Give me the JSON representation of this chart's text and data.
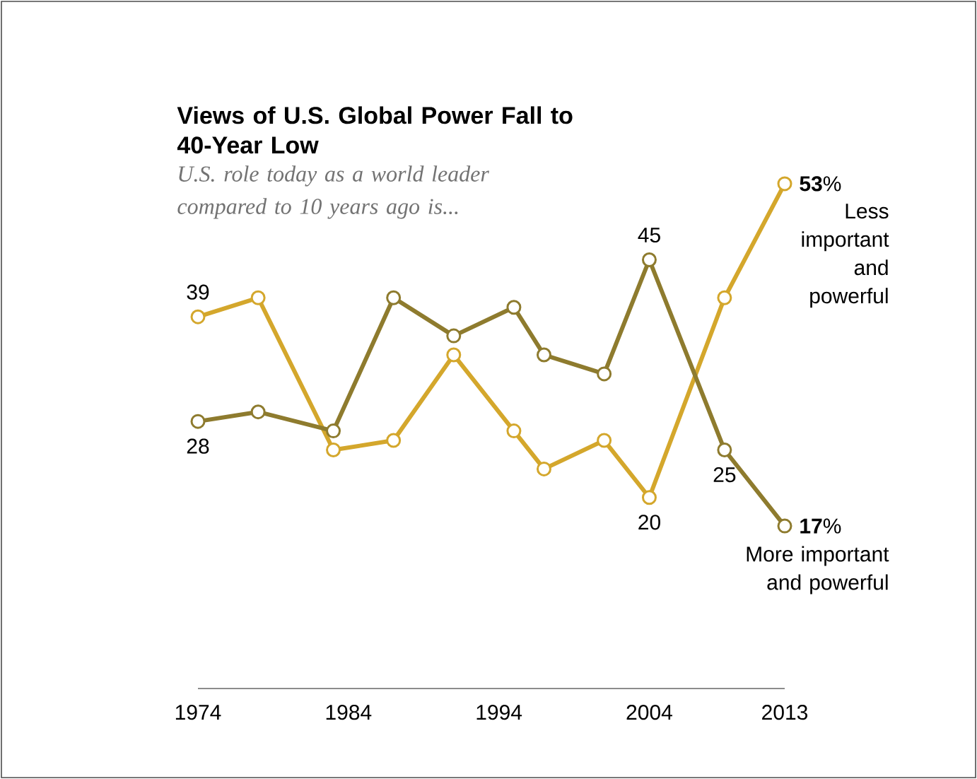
{
  "chart_data": {
    "type": "line",
    "title": "Views of U.S. Global Power Fall to 40-Year Low",
    "subtitle": "U.S. role today as a world leader compared to 10 years ago is...",
    "x": [
      1974,
      1978,
      1983,
      1987,
      1991,
      1995,
      1997,
      2001,
      2004,
      2009,
      2013
    ],
    "series": [
      {
        "name": "Less important and powerful",
        "color": "#d4a72c",
        "values": [
          39,
          41,
          25,
          26,
          35,
          27,
          23,
          26,
          20,
          41,
          53
        ],
        "value_labels": [
          "39",
          null,
          null,
          null,
          null,
          null,
          null,
          null,
          "20",
          null,
          "**53**%"
        ]
      },
      {
        "name": "More important and powerful",
        "color": "#8e7b2e",
        "values": [
          28,
          29,
          27,
          41,
          37,
          40,
          35,
          33,
          45,
          25,
          17
        ],
        "value_labels": [
          "28",
          null,
          null,
          null,
          null,
          null,
          null,
          null,
          "45",
          "25",
          "**17**%"
        ]
      }
    ],
    "xlim": [
      1974,
      2013
    ],
    "xticks": [
      1974,
      1984,
      1994,
      2004,
      2013
    ],
    "tick_labels": "x",
    "marker": "circle",
    "line_style": "solid"
  }
}
